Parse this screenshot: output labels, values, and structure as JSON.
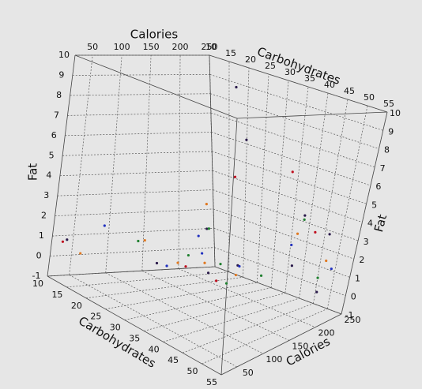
{
  "chart_data": {
    "type": "scatter3d",
    "xlabel": "Calories",
    "ylabel": "Carbohydrates",
    "zlabel": "Fat",
    "xlim": [
      20,
      250
    ],
    "xticks": [
      50,
      100,
      150,
      200,
      250
    ],
    "ylim": [
      10,
      55
    ],
    "yticks": [
      10,
      15,
      20,
      25,
      30,
      35,
      40,
      45,
      50,
      55
    ],
    "zlim": [
      -1,
      10
    ],
    "zticks": [
      -1,
      0,
      1,
      2,
      3,
      4,
      5,
      6,
      7,
      8,
      9,
      10
    ],
    "grid": true,
    "series": [
      {
        "color": "#2a1a4a",
        "x": [
          30,
          110,
          150,
          200,
          240,
          230,
          190,
          130,
          240,
          210,
          160
        ],
        "y": [
          12,
          22,
          28,
          45,
          48,
          20,
          30,
          33,
          40,
          52,
          36
        ],
        "z": [
          1,
          0.5,
          2.5,
          1.5,
          3,
          9,
          7,
          0.8,
          3.5,
          0.5,
          1.2
        ]
      },
      {
        "color": "#e07820",
        "x": [
          40,
          120,
          140,
          170,
          220,
          230,
          180,
          100
        ],
        "y": [
          14,
          26,
          30,
          34,
          42,
          50,
          22,
          20
        ],
        "z": [
          0.5,
          0.8,
          1,
          0.5,
          2.8,
          1.8,
          3.2,
          1.5
        ]
      },
      {
        "color": "#208030",
        "x": [
          90,
          130,
          160,
          190,
          210,
          220,
          170,
          150
        ],
        "y": [
          20,
          27,
          31,
          38,
          45,
          50,
          25,
          35
        ],
        "z": [
          1.5,
          1.2,
          0.9,
          0.6,
          3.8,
          1,
          2.2,
          0.3
        ]
      },
      {
        "color": "#2030c0",
        "x": [
          60,
          140,
          180,
          200,
          230,
          160,
          120
        ],
        "y": [
          16,
          29,
          33,
          44,
          52,
          24,
          23
        ],
        "z": [
          2,
          1.4,
          0.8,
          2.5,
          1.5,
          1.8,
          0.4
        ]
      },
      {
        "color": "#c01020",
        "x": [
          30,
          150,
          220,
          240,
          200,
          110
        ],
        "y": [
          11,
          32,
          47,
          35,
          26,
          30
        ],
        "z": [
          0.8,
          0.2,
          3.2,
          5.5,
          4.8,
          1
        ]
      }
    ]
  }
}
